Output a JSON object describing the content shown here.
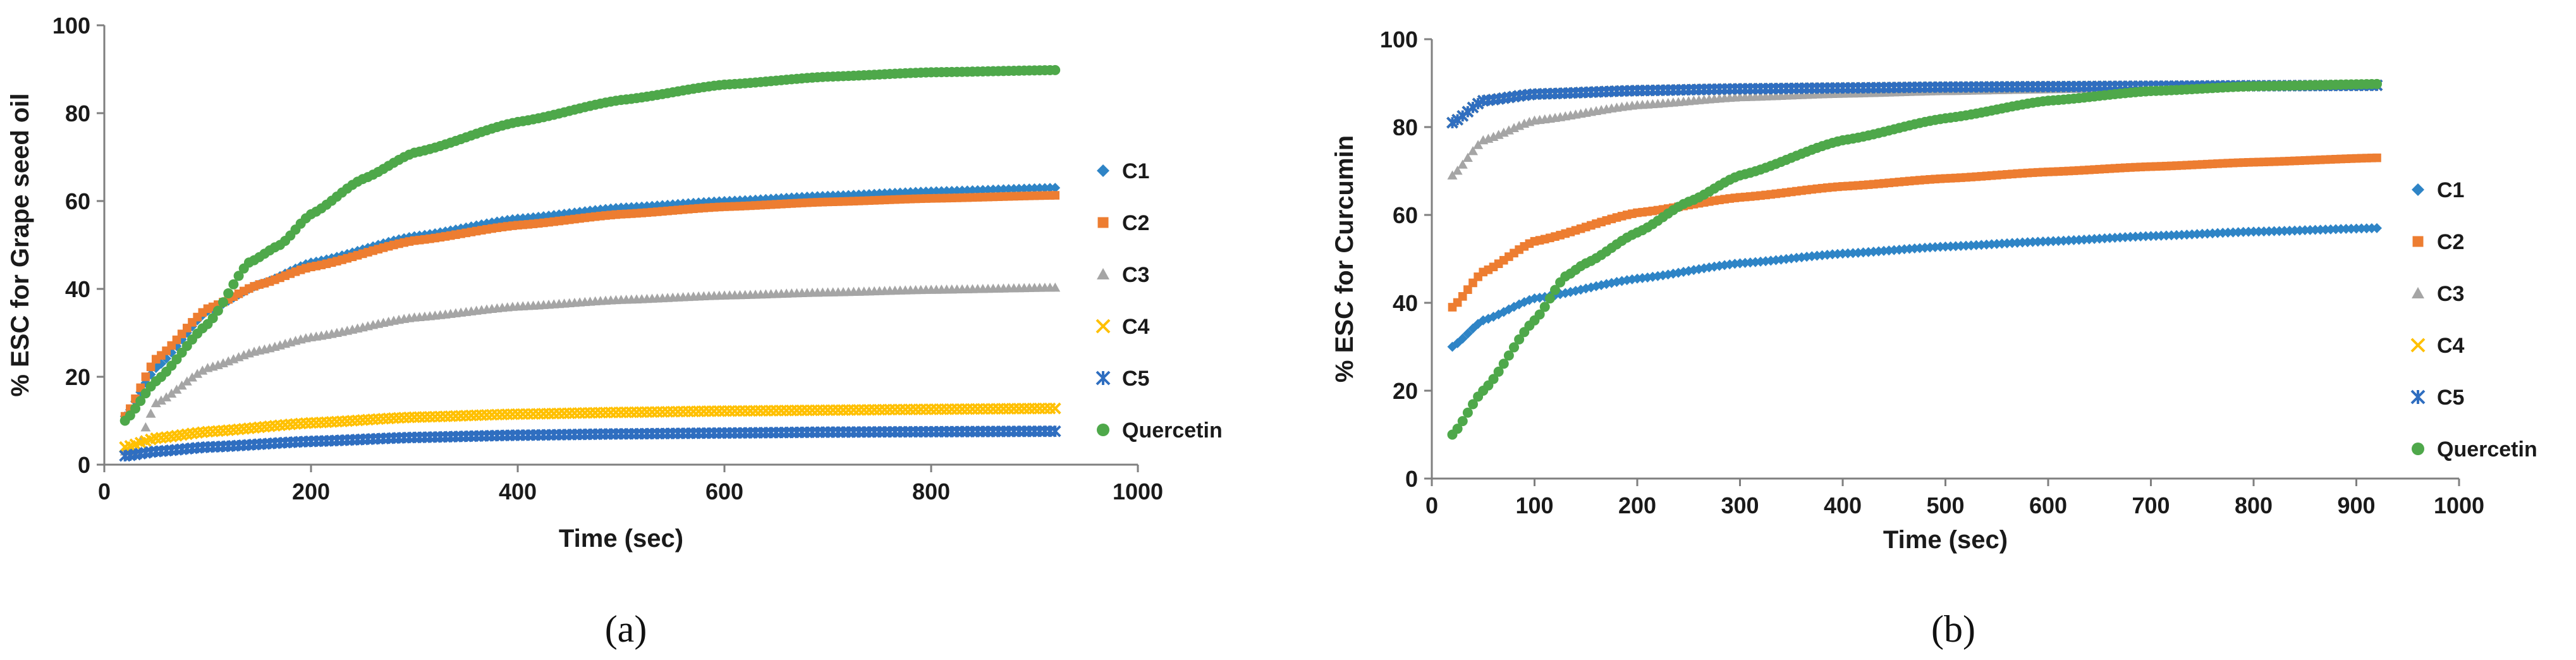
{
  "chart_data": [
    {
      "type": "scatter",
      "panel_label": "(a)",
      "title": "",
      "xlabel": "Time (sec)",
      "ylabel": "% ESC for Grape seed oil",
      "xlim": [
        0,
        1000
      ],
      "ylim": [
        0,
        100
      ],
      "xticks": [
        0,
        200,
        400,
        600,
        800,
        1000
      ],
      "yticks": [
        0,
        20,
        40,
        60,
        80,
        100
      ],
      "x_range": [
        20,
        920
      ],
      "legend_position": "right",
      "series": [
        {
          "name": "C1",
          "marker": "diamond",
          "color": "#2e84c6",
          "points": [
            [
              20,
              11
            ],
            [
              50,
              22
            ],
            [
              100,
              35
            ],
            [
              150,
              41
            ],
            [
              200,
              46
            ],
            [
              300,
              52
            ],
            [
              400,
              56
            ],
            [
              500,
              58.5
            ],
            [
              600,
              60
            ],
            [
              700,
              61.2
            ],
            [
              800,
              62.2
            ],
            [
              920,
              63
            ]
          ]
        },
        {
          "name": "C2",
          "marker": "square",
          "color": "#ed7d31",
          "points": [
            [
              20,
              11
            ],
            [
              50,
              24
            ],
            [
              100,
              35.5
            ],
            [
              150,
              41
            ],
            [
              200,
              45
            ],
            [
              300,
              51
            ],
            [
              400,
              54.5
            ],
            [
              500,
              57
            ],
            [
              600,
              58.7
            ],
            [
              700,
              59.8
            ],
            [
              800,
              60.6
            ],
            [
              920,
              61.3
            ]
          ]
        },
        {
          "name": "C3",
          "marker": "triangle",
          "color": "#a5a5a5",
          "points": [
            [
              30,
              3
            ],
            [
              50,
              14
            ],
            [
              100,
              22
            ],
            [
              150,
              26
            ],
            [
              200,
              29
            ],
            [
              300,
              33.5
            ],
            [
              400,
              36
            ],
            [
              500,
              37.5
            ],
            [
              600,
              38.5
            ],
            [
              700,
              39.2
            ],
            [
              800,
              39.8
            ],
            [
              920,
              40.3
            ]
          ]
        },
        {
          "name": "C4",
          "marker": "x",
          "color": "#ffc000",
          "points": [
            [
              20,
              4
            ],
            [
              50,
              6
            ],
            [
              100,
              7.5
            ],
            [
              200,
              9.5
            ],
            [
              300,
              10.8
            ],
            [
              400,
              11.5
            ],
            [
              500,
              11.9
            ],
            [
              600,
              12.2
            ],
            [
              700,
              12.4
            ],
            [
              800,
              12.6
            ],
            [
              920,
              12.8
            ]
          ]
        },
        {
          "name": "C5",
          "marker": "star",
          "color": "#2f6ec0",
          "points": [
            [
              20,
              2
            ],
            [
              50,
              3
            ],
            [
              100,
              4
            ],
            [
              200,
              5.3
            ],
            [
              300,
              6.2
            ],
            [
              400,
              6.7
            ],
            [
              500,
              7
            ],
            [
              600,
              7.2
            ],
            [
              700,
              7.4
            ],
            [
              800,
              7.5
            ],
            [
              920,
              7.6
            ]
          ]
        },
        {
          "name": "Quercetin",
          "marker": "circle",
          "color": "#4ea84a",
          "points": [
            [
              20,
              10
            ],
            [
              50,
              19
            ],
            [
              100,
              32
            ],
            [
              140,
              46
            ],
            [
              170,
              50
            ],
            [
              200,
              57
            ],
            [
              250,
              65
            ],
            [
              300,
              71
            ],
            [
              400,
              78
            ],
            [
              500,
              83
            ],
            [
              600,
              86.5
            ],
            [
              700,
              88.3
            ],
            [
              800,
              89.3
            ],
            [
              920,
              89.8
            ]
          ]
        }
      ]
    },
    {
      "type": "scatter",
      "panel_label": "(b)",
      "title": "",
      "xlabel": "Time (sec)",
      "ylabel": "% ESC for Curcumin",
      "xlim": [
        0,
        1000
      ],
      "ylim": [
        0,
        100
      ],
      "xticks": [
        0,
        100,
        200,
        300,
        400,
        500,
        600,
        700,
        800,
        900,
        1000
      ],
      "yticks": [
        0,
        20,
        40,
        60,
        80,
        100
      ],
      "x_range": [
        20,
        920
      ],
      "legend_position": "right",
      "series": [
        {
          "name": "C1",
          "marker": "diamond",
          "color": "#2e84c6",
          "points": [
            [
              20,
              30
            ],
            [
              50,
              36
            ],
            [
              100,
              41
            ],
            [
              200,
              45.5
            ],
            [
              300,
              49
            ],
            [
              400,
              51.2
            ],
            [
              500,
              52.8
            ],
            [
              600,
              54
            ],
            [
              700,
              55.2
            ],
            [
              800,
              56.2
            ],
            [
              920,
              57
            ]
          ]
        },
        {
          "name": "C2",
          "marker": "square",
          "color": "#ed7d31",
          "points": [
            [
              20,
              39
            ],
            [
              50,
              47
            ],
            [
              100,
              54
            ],
            [
              200,
              60.5
            ],
            [
              300,
              64
            ],
            [
              400,
              66.5
            ],
            [
              500,
              68.3
            ],
            [
              600,
              69.8
            ],
            [
              700,
              71
            ],
            [
              800,
              72
            ],
            [
              920,
              73
            ]
          ]
        },
        {
          "name": "C3",
          "marker": "triangle",
          "color": "#a5a5a5",
          "points": [
            [
              20,
              69
            ],
            [
              50,
              77
            ],
            [
              100,
              81.5
            ],
            [
              200,
              85
            ],
            [
              300,
              86.8
            ],
            [
              400,
              87.6
            ],
            [
              500,
              88.2
            ],
            [
              600,
              88.6
            ],
            [
              700,
              89
            ],
            [
              800,
              89.2
            ],
            [
              920,
              89.5
            ]
          ]
        },
        {
          "name": "C4",
          "marker": "x",
          "color": "#ffc000",
          "points": [
            [
              20,
              81
            ],
            [
              50,
              86
            ],
            [
              100,
              87.5
            ],
            [
              200,
              88.3
            ],
            [
              300,
              88.7
            ],
            [
              400,
              88.9
            ],
            [
              500,
              89.1
            ],
            [
              600,
              89.2
            ],
            [
              700,
              89.3
            ],
            [
              800,
              89.4
            ],
            [
              920,
              89.5
            ]
          ]
        },
        {
          "name": "C5",
          "marker": "star",
          "color": "#2f6ec0",
          "points": [
            [
              20,
              81
            ],
            [
              50,
              86
            ],
            [
              100,
              87.5
            ],
            [
              200,
              88.3
            ],
            [
              300,
              88.7
            ],
            [
              400,
              88.9
            ],
            [
              500,
              89.1
            ],
            [
              600,
              89.2
            ],
            [
              700,
              89.3
            ],
            [
              800,
              89.4
            ],
            [
              920,
              89.5
            ]
          ]
        },
        {
          "name": "Quercetin",
          "marker": "circle",
          "color": "#4ea84a",
          "points": [
            [
              20,
              10
            ],
            [
              50,
              20
            ],
            [
              100,
              36
            ],
            [
              130,
              46
            ],
            [
              150,
              49
            ],
            [
              200,
              56
            ],
            [
              250,
              63
            ],
            [
              300,
              69
            ],
            [
              400,
              77
            ],
            [
              500,
              82
            ],
            [
              600,
              86
            ],
            [
              700,
              88.2
            ],
            [
              800,
              89.3
            ],
            [
              920,
              89.8
            ]
          ]
        }
      ]
    }
  ]
}
